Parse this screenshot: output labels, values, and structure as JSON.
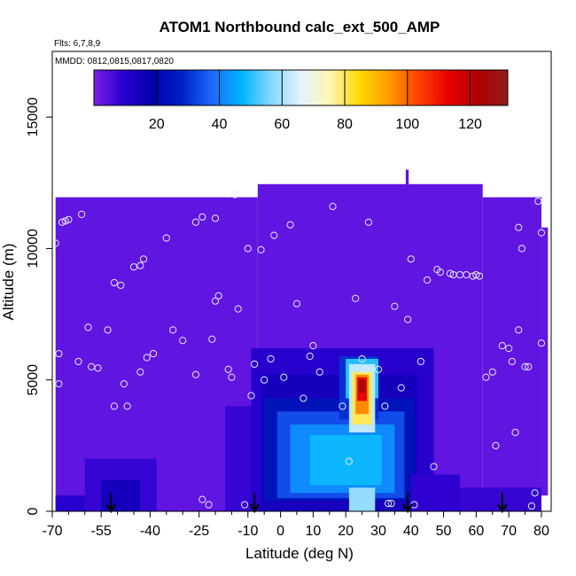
{
  "chart_data": {
    "type": "heatmap",
    "title": "ATOM1 Northbound calc_ext_500_AMP",
    "flights_label": "Flts: 6,7,8,9",
    "dates_label": "MMDD: 0812,0815,0817,0820",
    "xlabel": "Latitude (deg N)",
    "ylabel": "Altitude (m)",
    "xlim": [
      -70,
      83
    ],
    "ylim": [
      0,
      17500
    ],
    "x_ticks": [
      -70,
      -55,
      -40,
      -25,
      -10,
      0,
      10,
      20,
      30,
      40,
      50,
      60,
      70,
      80
    ],
    "x_tick_labels": [
      "-70",
      "-55",
      "-40",
      "-25",
      "-10",
      "0",
      "10",
      "20",
      "30",
      "40",
      "50",
      "60",
      "70",
      "80"
    ],
    "x_minor_ticks": [
      -65,
      -60,
      -50,
      -45,
      -35,
      -30,
      -20,
      -15,
      -5,
      5,
      15,
      25,
      35,
      45,
      55,
      65,
      75
    ],
    "y_ticks": [
      0,
      5000,
      10000,
      15000
    ],
    "y_tick_labels": [
      "0",
      "5000",
      "10000",
      "15000"
    ],
    "colorbar": {
      "range": [
        0,
        132
      ],
      "ticks": [
        20,
        40,
        60,
        80,
        100,
        120
      ],
      "tick_labels": [
        "20",
        "40",
        "60",
        "80",
        "100",
        "120"
      ],
      "colors": [
        "#7b1fe8",
        "#2a00d0",
        "#0000a8",
        "#0022c8",
        "#1e68ff",
        "#00b4ff",
        "#87d8ff",
        "#e4f4ff",
        "#fff6b0",
        "#ffd800",
        "#ff9a00",
        "#ff4000",
        "#e60000",
        "#b00000",
        "#8e1e1e"
      ]
    },
    "field": {
      "background_value": 3,
      "cells": [
        {
          "x0": -69,
          "x1": -7,
          "y0": 0,
          "y1": 11950,
          "value": 3
        },
        {
          "x0": -7,
          "x1": 62,
          "y0": 0,
          "y1": 12450,
          "value": 3
        },
        {
          "x0": 62,
          "x1": 80,
          "y0": 0,
          "y1": 11950,
          "value": 3
        },
        {
          "x0": 80,
          "x1": 82,
          "y0": 600,
          "y1": 10800,
          "value": 3
        },
        {
          "x0": 38.4,
          "x1": 39.3,
          "y0": 12300,
          "y1": 13000,
          "value": 3
        },
        {
          "x0": -17,
          "x1": -9,
          "y0": 0,
          "y1": 4000,
          "value": 8
        },
        {
          "x0": -9,
          "x1": 47,
          "y0": 0,
          "y1": 6200,
          "value": 10
        },
        {
          "x0": -6,
          "x1": 42,
          "y0": 0,
          "y1": 5200,
          "value": 14
        },
        {
          "x0": -5,
          "x1": 41,
          "y0": 400,
          "y1": 4300,
          "value": 24
        },
        {
          "x0": -1,
          "x1": 38,
          "y0": 500,
          "y1": 3800,
          "value": 34
        },
        {
          "x0": 3,
          "x1": 35,
          "y0": 700,
          "y1": 3300,
          "value": 42
        },
        {
          "x0": 9,
          "x1": 31,
          "y0": 1000,
          "y1": 2900,
          "value": 48
        },
        {
          "x0": 18,
          "x1": 30,
          "y0": 3500,
          "y1": 5900,
          "value": 30
        },
        {
          "x0": 20,
          "x1": 30,
          "y0": 4300,
          "y1": 5800,
          "value": 50
        },
        {
          "x0": 21,
          "x1": 29,
          "y0": 3000,
          "y1": 5600,
          "value": 62
        },
        {
          "x0": 22,
          "x1": 28,
          "y0": 3300,
          "y1": 5300,
          "value": 80
        },
        {
          "x0": 23,
          "x1": 27,
          "y0": 3700,
          "y1": 5200,
          "value": 96
        },
        {
          "x0": 23.5,
          "x1": 26.5,
          "y0": 4200,
          "y1": 5100,
          "value": 112
        },
        {
          "x0": 24,
          "x1": 26,
          "y0": 4500,
          "y1": 5000,
          "value": 124
        },
        {
          "x0": 21,
          "x1": 29,
          "y0": 0,
          "y1": 900,
          "value": 58
        },
        {
          "x0": -60,
          "x1": -38,
          "y0": 0,
          "y1": 2000,
          "value": 8
        },
        {
          "x0": -55,
          "x1": -43,
          "y0": 0,
          "y1": 1200,
          "value": 14
        },
        {
          "x0": 40,
          "x1": 55,
          "y0": 0,
          "y1": 1400,
          "value": 9
        },
        {
          "x0": 55,
          "x1": 80,
          "y0": 0,
          "y1": 900,
          "value": 8
        },
        {
          "x0": -69,
          "x1": -60,
          "y0": 0,
          "y1": 600,
          "value": 10
        }
      ]
    },
    "flight_track_points": {
      "x": [
        -69,
        -68,
        -68,
        -67,
        -66,
        -65,
        -62,
        -61,
        -59,
        -58,
        -56,
        -53,
        -51,
        -51,
        -49,
        -48,
        -47,
        -45,
        -43,
        -43,
        -42,
        -41,
        -39,
        -35,
        -33,
        -30,
        -26,
        -26,
        -24,
        -24,
        -22,
        -21,
        -20,
        -20,
        -19,
        -16,
        -15,
        -14,
        -13,
        -11,
        -10,
        -9,
        -8,
        -6,
        -5,
        -3,
        -2,
        1,
        3,
        5,
        7,
        9,
        10,
        12,
        16,
        19,
        21,
        23,
        25,
        26,
        27,
        30,
        32,
        33,
        34,
        35,
        37,
        39,
        40,
        41,
        43,
        45,
        47,
        48,
        49,
        52,
        53,
        55,
        57,
        59,
        60,
        61,
        63,
        65,
        66,
        68,
        70,
        71,
        72,
        73,
        73,
        74,
        75,
        76,
        77,
        78,
        79,
        80,
        80
      ],
      "y": [
        10200,
        6000,
        4850,
        11000,
        11050,
        11100,
        5700,
        11300,
        7000,
        5500,
        5450,
        6900,
        4000,
        8700,
        8600,
        4850,
        4000,
        9300,
        9350,
        5300,
        9600,
        5850,
        6000,
        10400,
        6900,
        6500,
        5200,
        11000,
        11200,
        450,
        250,
        6550,
        8000,
        11150,
        8200,
        5400,
        5100,
        12050,
        7700,
        250,
        10000,
        4400,
        5600,
        9950,
        5000,
        5800,
        10500,
        5100,
        10900,
        7900,
        4300,
        5900,
        6300,
        5300,
        11600,
        4000,
        1900,
        8100,
        5800,
        5400,
        11000,
        5400,
        4000,
        300,
        300,
        7800,
        4700,
        7300,
        9600,
        250,
        5700,
        8800,
        1700,
        9200,
        9100,
        9050,
        9000,
        9000,
        9000,
        8950,
        9000,
        8950,
        5100,
        5300,
        2500,
        6300,
        6200,
        5700,
        3000,
        10800,
        6900,
        10000,
        5500,
        5500,
        200,
        700,
        11800,
        10600,
        6400
      ]
    },
    "arrows_x": [
      -52,
      -8,
      39,
      68
    ]
  }
}
